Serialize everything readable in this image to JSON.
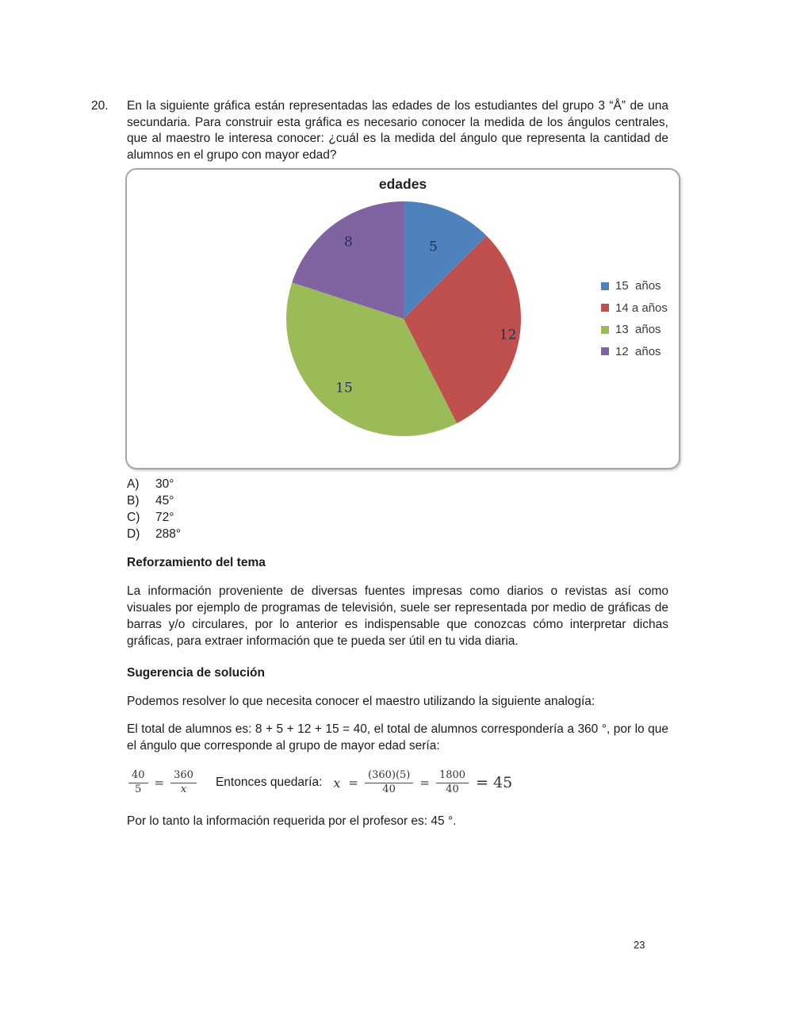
{
  "question": {
    "number": "20.",
    "text": "En la siguiente gráfica están representadas las edades de los estudiantes del grupo 3  “Å” de una secundaria. Para construir esta gráfica es necesario conocer la medida de los ángulos centrales, que al maestro le interesa conocer: ¿cuál es la medida del ángulo que representa la cantidad de alumnos en el grupo con mayor edad?"
  },
  "chart_data": {
    "type": "pie",
    "title": "edades",
    "start_angle_deg": 0,
    "direction": "clockwise",
    "legend_position": "right",
    "total": 40,
    "series": [
      {
        "label": "15  años",
        "value": 5,
        "color": "#4F81BD"
      },
      {
        "label": "14 a años",
        "value": 12,
        "color": "#C0504D"
      },
      {
        "label": "13  años",
        "value": 15,
        "color": "#9BBB59"
      },
      {
        "label": "12  años",
        "value": 8,
        "color": "#8064A2"
      }
    ],
    "data_label_color": "#1F3050"
  },
  "options": [
    {
      "letter": "A)",
      "value": "30°"
    },
    {
      "letter": "B)",
      "value": "45°"
    },
    {
      "letter": "C)",
      "value": "72°"
    },
    {
      "letter": "D)",
      "value": "288°"
    }
  ],
  "sections": {
    "reinforcement_heading": "Reforzamiento del tema",
    "reinforcement_text": "La información proveniente de diversas fuentes impresas como diarios o revistas así como visuales por ejemplo de programas de televisión, suele ser representada por medio de gráficas de barras y/o circulares, por lo anterior es indispensable que conozcas cómo interpretar dichas gráficas, para extraer información que te pueda ser útil en tu vida diaria.",
    "suggestion_heading": "Sugerencia de solución",
    "suggestion_intro": "Podemos resolver lo que necesita conocer el maestro utilizando la siguiente analogía:",
    "totals_text": "El total de alumnos es: 8 + 5 + 12 + 15 = 40, el total de alumnos correspondería a 360 °, por lo que el ángulo que corresponde al grupo de mayor edad sería:",
    "conclusion": "Por lo tanto la información requerida por el profesor es: 45 °."
  },
  "formula": {
    "f1_num": "40",
    "f1_den": "5",
    "eq1": "=",
    "f2_num": "360",
    "f2_den": "x",
    "entonces": "Entonces quedaría:",
    "x_var": "x",
    "eq2": "=",
    "f3_num": "(360)(5)",
    "f3_den": "40",
    "eq3": "=",
    "f4_num": "1800",
    "f4_den": "40",
    "eq4": "=",
    "result_value": "45"
  },
  "page_number": "23"
}
